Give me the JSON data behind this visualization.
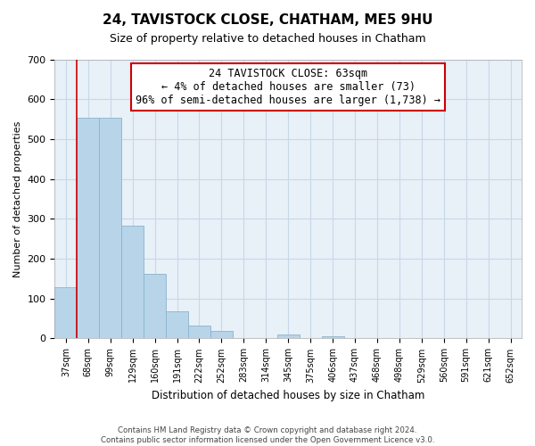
{
  "title": "24, TAVISTOCK CLOSE, CHATHAM, ME5 9HU",
  "subtitle": "Size of property relative to detached houses in Chatham",
  "xlabel": "Distribution of detached houses by size in Chatham",
  "ylabel": "Number of detached properties",
  "bar_labels": [
    "37sqm",
    "68sqm",
    "99sqm",
    "129sqm",
    "160sqm",
    "191sqm",
    "222sqm",
    "252sqm",
    "283sqm",
    "314sqm",
    "345sqm",
    "375sqm",
    "406sqm",
    "437sqm",
    "468sqm",
    "498sqm",
    "529sqm",
    "560sqm",
    "591sqm",
    "621sqm",
    "652sqm"
  ],
  "bar_values": [
    128,
    554,
    554,
    283,
    163,
    68,
    33,
    20,
    0,
    0,
    10,
    0,
    5,
    0,
    0,
    0,
    0,
    0,
    0,
    0,
    0
  ],
  "bar_color": "#b8d4e8",
  "bar_edge_color": "#8ab4cc",
  "annotation_box_text": "24 TAVISTOCK CLOSE: 63sqm\n← 4% of detached houses are smaller (73)\n96% of semi-detached houses are larger (1,738) →",
  "vline_x_index": 1.0,
  "ylim": [
    0,
    700
  ],
  "yticks": [
    0,
    100,
    200,
    300,
    400,
    500,
    600,
    700
  ],
  "footer_text": "Contains HM Land Registry data © Crown copyright and database right 2024.\nContains public sector information licensed under the Open Government Licence v3.0.",
  "annotation_box_color": "#ffffff",
  "annotation_box_edge_color": "#cc0000",
  "vline_color": "#cc0000",
  "grid_color": "#c8d8e8",
  "background_color": "#e8f0f8"
}
